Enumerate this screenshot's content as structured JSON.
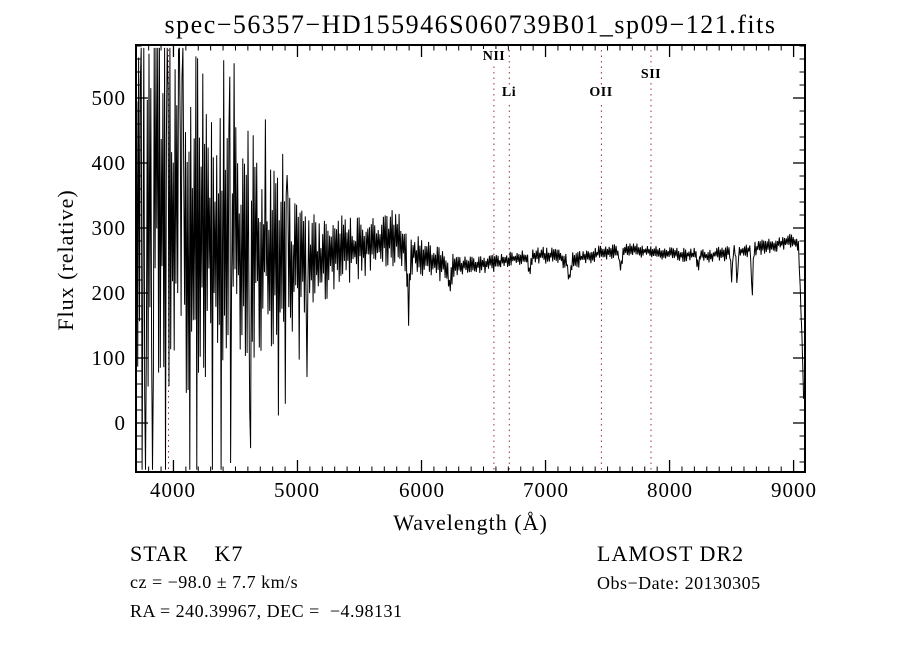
{
  "window": {
    "kind": "spectrum-plot-viewer"
  },
  "colors": {
    "background": "#ffffff",
    "axis": "#000000",
    "trace": "#000000",
    "marker_line": "#993333"
  },
  "annotations": {
    "class_line": "STAR    K7",
    "cz_line": "cz = −98.0 ± 7.7 km/s",
    "radec_line": "RA = 240.39967, DEC =  −4.98131",
    "survey_line": "LAMOST DR2",
    "obsdate_line": "Obs−Date: 20130305"
  },
  "chart_data": {
    "type": "line",
    "title": "spec−56357−HD155946S060739B01_sp09−121.fits",
    "xlabel": "Wavelength (Å)",
    "ylabel": "Flux (relative)",
    "xlim": [
      3690,
      9100
    ],
    "ylim": [
      -77,
      583
    ],
    "xticks": [
      4000,
      5000,
      6000,
      7000,
      8000,
      9000
    ],
    "yticks": [
      0,
      100,
      200,
      300,
      400,
      500
    ],
    "x_minor_step": 100,
    "y_minor_step": 20,
    "grid": false,
    "legend": null,
    "noise_seed": 20130305,
    "series_note": "Noisy stellar spectrum (STAR K7). Envelope points are [wavelength_A, mean_flux, half_amplitude]; dense jagged trace oscillates within envelope, clipped to frame.",
    "envelope": [
      [
        3690,
        270,
        300
      ],
      [
        3760,
        330,
        300
      ],
      [
        3820,
        350,
        290
      ],
      [
        3900,
        360,
        280
      ],
      [
        3960,
        340,
        290
      ],
      [
        4050,
        320,
        280
      ],
      [
        4150,
        305,
        265
      ],
      [
        4300,
        300,
        245
      ],
      [
        4450,
        285,
        225
      ],
      [
        4600,
        272,
        185
      ],
      [
        4750,
        260,
        150
      ],
      [
        4900,
        248,
        115
      ],
      [
        5050,
        238,
        90
      ],
      [
        5200,
        248,
        72
      ],
      [
        5350,
        262,
        58
      ],
      [
        5500,
        272,
        52
      ],
      [
        5650,
        280,
        48
      ],
      [
        5800,
        288,
        45
      ],
      [
        5900,
        268,
        42
      ],
      [
        6000,
        252,
        34
      ],
      [
        6150,
        244,
        26
      ],
      [
        6300,
        241,
        18
      ],
      [
        6450,
        243,
        14
      ],
      [
        6600,
        246,
        13
      ],
      [
        6750,
        253,
        13
      ],
      [
        6900,
        257,
        14
      ],
      [
        7050,
        259,
        14
      ],
      [
        7200,
        249,
        15
      ],
      [
        7350,
        257,
        13
      ],
      [
        7500,
        264,
        12
      ],
      [
        7700,
        266,
        11
      ],
      [
        7900,
        263,
        11
      ],
      [
        8100,
        259,
        11
      ],
      [
        8300,
        257,
        12
      ],
      [
        8500,
        262,
        12
      ],
      [
        8700,
        269,
        12
      ],
      [
        8900,
        277,
        12
      ],
      [
        9000,
        281,
        11
      ],
      [
        9040,
        272,
        8
      ],
      [
        9070,
        120,
        5
      ],
      [
        9085,
        6,
        3
      ]
    ],
    "absorption_dips": [
      [
        5893,
        10,
        85
      ],
      [
        6230,
        10,
        30
      ],
      [
        6870,
        10,
        28
      ],
      [
        7190,
        10,
        30
      ],
      [
        7605,
        10,
        28
      ],
      [
        8230,
        8,
        18
      ],
      [
        8500,
        6,
        40
      ],
      [
        8545,
        6,
        48
      ],
      [
        8665,
        6,
        70
      ]
    ],
    "spectral_lines": [
      {
        "label": "",
        "wavelength": 3960,
        "label_y": null,
        "line_top": 0
      },
      {
        "label": "NII",
        "wavelength": 6584,
        "label_y": 13,
        "line_top": 6
      },
      {
        "label": "Li",
        "wavelength": 6708,
        "label_y": 49,
        "line_top": 6
      },
      {
        "label": "OII",
        "wavelength": 7450,
        "label_y": 49,
        "line_top": 6
      },
      {
        "label": "SII",
        "wavelength": 7850,
        "label_y": 31,
        "line_top": 6
      }
    ]
  }
}
